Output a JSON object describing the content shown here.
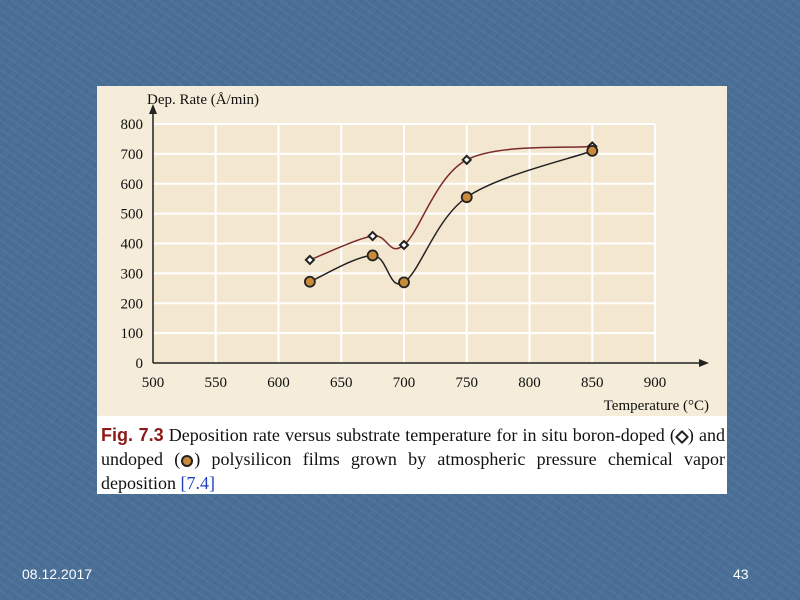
{
  "chart_data": {
    "type": "line",
    "ylabel": "Dep. Rate (Å/min)",
    "xlabel": "Temperature (°C)",
    "xlim": [
      500,
      900
    ],
    "ylim": [
      0,
      800
    ],
    "x_ticks": [
      500,
      550,
      600,
      650,
      700,
      750,
      800,
      850,
      900
    ],
    "y_ticks": [
      0,
      100,
      200,
      300,
      400,
      500,
      600,
      700,
      800
    ],
    "grid": true,
    "series": [
      {
        "marker": "open",
        "color": "#7a2a2a",
        "x": [
          625,
          675,
          700,
          750,
          850
        ],
        "y": [
          345,
          425,
          395,
          680,
          725
        ]
      },
      {
        "marker": "filled",
        "color": "#222222",
        "x": [
          625,
          675,
          700,
          750,
          850
        ],
        "y": [
          272,
          360,
          270,
          555,
          710
        ]
      }
    ]
  },
  "caption": {
    "fig_label": "Fig. 7.3",
    "text_1": " Deposition rate versus substrate temperature for in situ boron-doped (",
    "text_2": ") and undoped (",
    "text_3": ") polysilicon films grown by atmospheric pressure chemical vapor deposition ",
    "ref": "[7.4]"
  },
  "footer": {
    "date": "08.12.2017",
    "page": "43"
  }
}
